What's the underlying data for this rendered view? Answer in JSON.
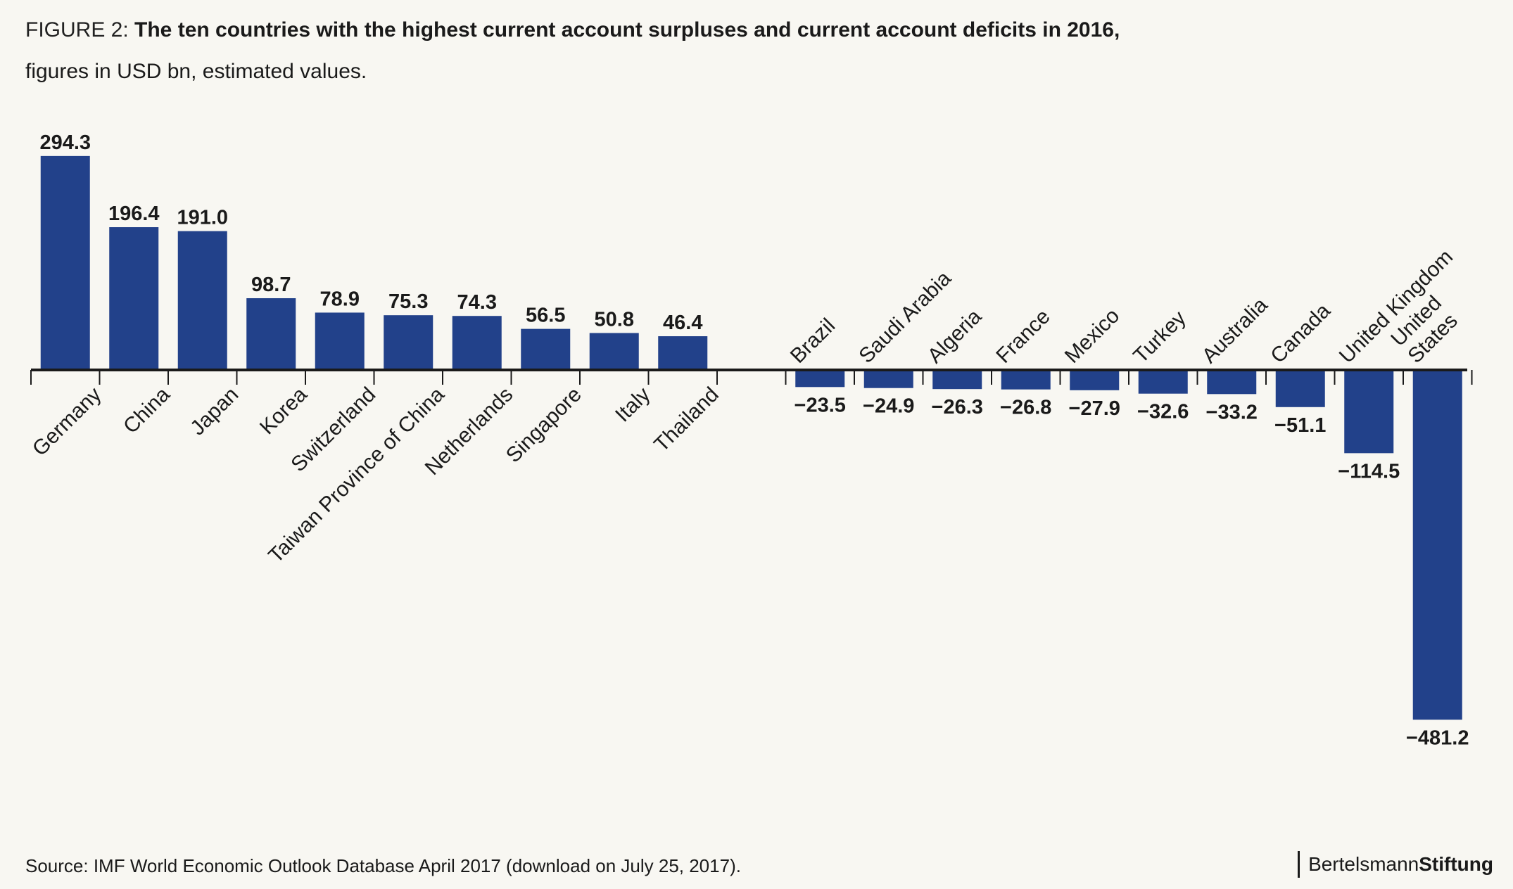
{
  "figure": {
    "label": "FIGURE 2: ",
    "title": "The ten countries with the highest current account surpluses and current account deficits in 2016,",
    "subtitle": "figures in USD bn, estimated values."
  },
  "source": "Source: IMF World Economic Outlook Database April 2017 (download on July 25, 2017).",
  "brand": {
    "part1": "Bertelsmann",
    "part2": "Stiftung"
  },
  "colors": {
    "bar": "#22418a",
    "axis": "#1a1a1a",
    "background": "#f8f7f2"
  },
  "chart_data": {
    "type": "bar",
    "title": "The ten countries with the highest current account surpluses and current account deficits in 2016,",
    "subtitle": "figures in USD bn, estimated values.",
    "xlabel": "",
    "ylabel": "",
    "unit": "USD bn",
    "grid": false,
    "legend": "none",
    "ylim": [
      -481.2,
      294.3
    ],
    "surpluses": {
      "categories": [
        "Germany",
        "China",
        "Japan",
        "Korea",
        "Switzerland",
        "Taiwan Province of China",
        "Netherlands",
        "Singapore",
        "Italy",
        "Thailand"
      ],
      "values": [
        294.3,
        196.4,
        191.0,
        98.7,
        78.9,
        75.3,
        74.3,
        56.5,
        50.8,
        46.4
      ],
      "value_labels": [
        "294.3",
        "196.4",
        "191.0",
        "98.7",
        "78.9",
        "75.3",
        "74.3",
        "56.5",
        "50.8",
        "46.4"
      ]
    },
    "deficits": {
      "categories": [
        "Brazil",
        "Saudi Arabia",
        "Algeria",
        "France",
        "Mexico",
        "Turkey",
        "Australia",
        "Canada",
        "United Kingdom",
        "United States"
      ],
      "category_lines": [
        [
          "Brazil"
        ],
        [
          "Saudi Arabia"
        ],
        [
          "Algeria"
        ],
        [
          "France"
        ],
        [
          "Mexico"
        ],
        [
          "Turkey"
        ],
        [
          "Australia"
        ],
        [
          "Canada"
        ],
        [
          "United Kingdom"
        ],
        [
          "United",
          "States"
        ]
      ],
      "values": [
        -23.5,
        -24.9,
        -26.3,
        -26.8,
        -27.9,
        -32.6,
        -33.2,
        -51.1,
        -114.5,
        -481.2
      ],
      "value_labels": [
        "−23.5",
        "−24.9",
        "−26.3",
        "−26.8",
        "−27.9",
        "−32.6",
        "−33.2",
        "−51.1",
        "−114.5",
        "−481.2"
      ]
    }
  }
}
